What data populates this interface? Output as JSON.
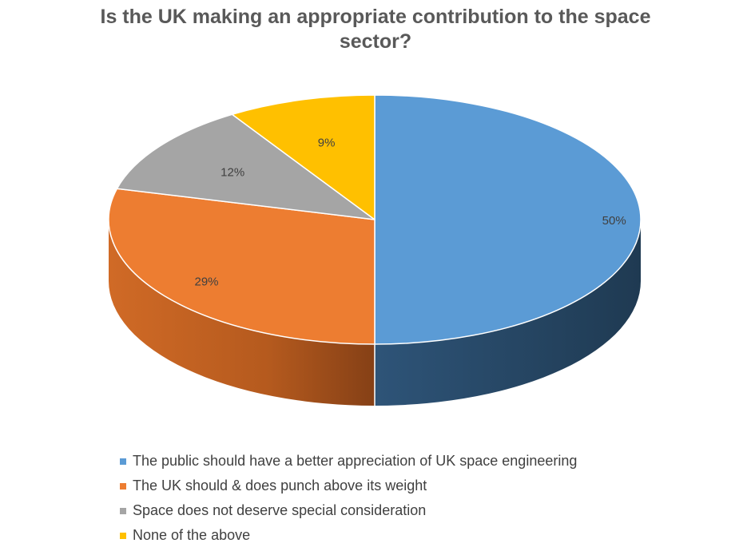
{
  "chart_data": {
    "type": "pie",
    "title_lines": [
      "Is the UK making an appropriate contribution to the space",
      "sector?"
    ],
    "slices": [
      {
        "label": "The public should have a better appreciation of UK space engineering",
        "value": 50,
        "data_label": "50%",
        "color": "#5B9BD5",
        "side_light": "#2F5578",
        "side_dark": "#213B54"
      },
      {
        "label": "The UK should & does punch above its weight",
        "value": 29,
        "data_label": "29%",
        "color": "#ED7D31",
        "side_light": "#C96322",
        "side_dark": "#8A4417"
      },
      {
        "label": "Space does not deserve special consideration",
        "value": 12,
        "data_label": "12%",
        "color": "#A5A5A5",
        "side_light": "#8A8A8A",
        "side_dark": "#6E6E6E"
      },
      {
        "label": "None of the above",
        "value": 9,
        "data_label": "9%",
        "color": "#FFC000",
        "side_light": "#D9A300",
        "side_dark": "#B38600"
      }
    ],
    "legend_position": "bottom",
    "style": "3d-pie"
  }
}
